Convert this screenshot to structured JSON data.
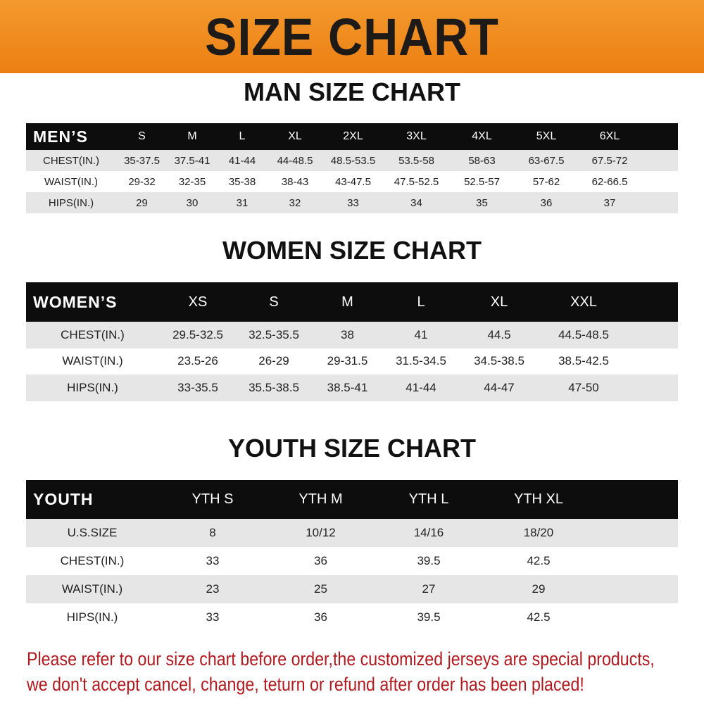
{
  "banner": {
    "title": "SIZE CHART",
    "color": "#ee8a1f"
  },
  "men": {
    "title": "MAN SIZE CHART",
    "header": [
      "MEN’S",
      "S",
      "M",
      "L",
      "XL",
      "2XL",
      "3XL",
      "4XL",
      "5XL",
      "6XL"
    ],
    "rows": [
      [
        "CHEST(IN.)",
        "35-37.5",
        "37.5-41",
        "41-44",
        "44-48.5",
        "48.5-53.5",
        "53.5-58",
        "58-63",
        "63-67.5",
        "67.5-72"
      ],
      [
        "WAIST(IN.)",
        "29-32",
        "32-35",
        "35-38",
        "38-43",
        "43-47.5",
        "47.5-52.5",
        "52.5-57",
        "57-62",
        "62-66.5"
      ],
      [
        "HIPS(IN.)",
        "29",
        "30",
        "31",
        "32",
        "33",
        "34",
        "35",
        "36",
        "37"
      ]
    ]
  },
  "women": {
    "title": "WOMEN SIZE CHART",
    "header": [
      "WOMEN’S",
      "XS",
      "S",
      "M",
      "L",
      "XL",
      "XXL"
    ],
    "rows": [
      [
        "CHEST(IN.)",
        "29.5-32.5",
        "32.5-35.5",
        "38",
        "41",
        "44.5",
        "44.5-48.5"
      ],
      [
        "WAIST(IN.)",
        "23.5-26",
        "26-29",
        "29-31.5",
        "31.5-34.5",
        "34.5-38.5",
        "38.5-42.5"
      ],
      [
        "HIPS(IN.)",
        "33-35.5",
        "35.5-38.5",
        "38.5-41",
        "41-44",
        "44-47",
        "47-50"
      ]
    ]
  },
  "youth": {
    "title": "YOUTH SIZE CHART",
    "header": [
      "YOUTH",
      "YTH S",
      "YTH M",
      "YTH L",
      "YTH XL"
    ],
    "rows": [
      [
        "U.S.SIZE",
        "8",
        "10/12",
        "14/16",
        "18/20"
      ],
      [
        "CHEST(IN.)",
        "33",
        "36",
        "39.5",
        "42.5"
      ],
      [
        "WAIST(IN.)",
        "23",
        "25",
        "27",
        "29"
      ],
      [
        "HIPS(IN.)",
        "33",
        "36",
        "39.5",
        "42.5"
      ]
    ]
  },
  "note": {
    "line1": "Please refer to our size chart before order,the customized jerseys are special products,",
    "line2": "we don't accept cancel, change, teturn or refund after order has been placed!",
    "color": "#b01a1f"
  }
}
